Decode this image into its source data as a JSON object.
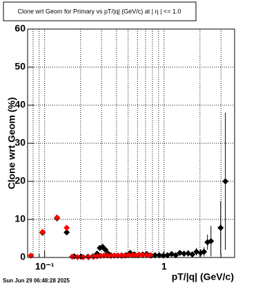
{
  "chart_data": {
    "type": "scatter",
    "title": "Clone wrt Geom for Primary vs pT/|q| (GeV/c) at |  η  | <= 1.0",
    "x_label": "pT/|q| (GeV/c)",
    "y_label": "Clone wrt Geom (%)",
    "footer": "Sun Jun 29 06:48:28 2025",
    "xlog": true,
    "grid": true,
    "xlim": [
      0.072,
      3.9
    ],
    "xticks": [
      {
        "value": 0.1,
        "label": "10⁻¹"
      },
      1
    ],
    "xminorticks": [
      0.08,
      0.09,
      0.2,
      0.3,
      0.4,
      0.5,
      0.6,
      0.7,
      0.8,
      0.9,
      2,
      3
    ],
    "ylim": [
      0,
      60
    ],
    "yticks": [
      0,
      10,
      20,
      30,
      40,
      50,
      60
    ],
    "series": [
      {
        "color": "#000000",
        "x": [
          0.0961,
          0.127,
          0.153,
          0.177,
          0.202,
          0.231,
          0.254,
          0.275,
          0.29,
          0.306,
          0.323,
          0.34,
          0.359,
          0.384,
          0.41,
          0.444,
          0.481,
          0.521,
          0.564,
          0.611,
          0.662,
          0.717,
          0.776,
          0.841,
          0.912,
          0.987,
          1.069,
          1.158,
          1.254,
          1.358,
          1.471,
          1.593,
          1.726,
          1.869,
          2.024,
          2.163,
          2.312,
          2.472,
          2.978,
          3.265
        ],
        "values": [
          6.5,
          10.3,
          6.6,
          0.3,
          0.2,
          0.2,
          0.3,
          1,
          2.5,
          2.8,
          2,
          1,
          0.6,
          0.5,
          0.5,
          0.5,
          0.6,
          1.2,
          0.8,
          0.6,
          0.8,
          0.9,
          0.5,
          0.6,
          0.6,
          0.5,
          0.6,
          0.9,
          0.6,
          1.2,
          1,
          1.1,
          0.8,
          1.5,
          1.2,
          1.5,
          4,
          4.3,
          7.8,
          20
        ],
        "errors": [
          0.6,
          0.8,
          0.6,
          0.3,
          0.2,
          0.2,
          0.3,
          0.5,
          0.7,
          0.7,
          0.6,
          0.5,
          0.4,
          0.4,
          0.4,
          0.4,
          0.4,
          0.5,
          0.5,
          0.4,
          0.5,
          0.5,
          0.4,
          0.4,
          0.4,
          0.4,
          0.5,
          0.6,
          0.5,
          0.7,
          0.7,
          0.8,
          0.7,
          1,
          1,
          1.2,
          2,
          4,
          7,
          18
        ]
      },
      {
        "color": "#ff0000",
        "x": [
          0.0766,
          0.0961,
          0.127,
          0.153,
          0.17,
          0.189,
          0.211,
          0.234,
          0.257,
          0.275,
          0.294,
          0.314,
          0.336,
          0.359,
          0.384,
          0.41,
          0.438,
          0.469,
          0.507,
          0.542,
          0.579,
          0.619,
          0.662,
          0.717,
          0.766
        ],
        "values": [
          0.5,
          6.7,
          10.5,
          7.8,
          0.2,
          0.1,
          0.1,
          0.1,
          0.2,
          0.3,
          0.4,
          0.5,
          0.5,
          0.4,
          0.5,
          0.5,
          0.5,
          0.5,
          0.6,
          0.6,
          0.6,
          0.7,
          0.6,
          0.6,
          0.6
        ],
        "errors": [
          0.5,
          0.6,
          0.8,
          0.7,
          0.2,
          0.1,
          0.1,
          0.1,
          0.2,
          0.2,
          0.3,
          0.3,
          0.3,
          0.3,
          0.3,
          0.3,
          0.3,
          0.3,
          0.3,
          0.3,
          0.3,
          0.4,
          0.3,
          0.3,
          0.3
        ]
      }
    ]
  }
}
